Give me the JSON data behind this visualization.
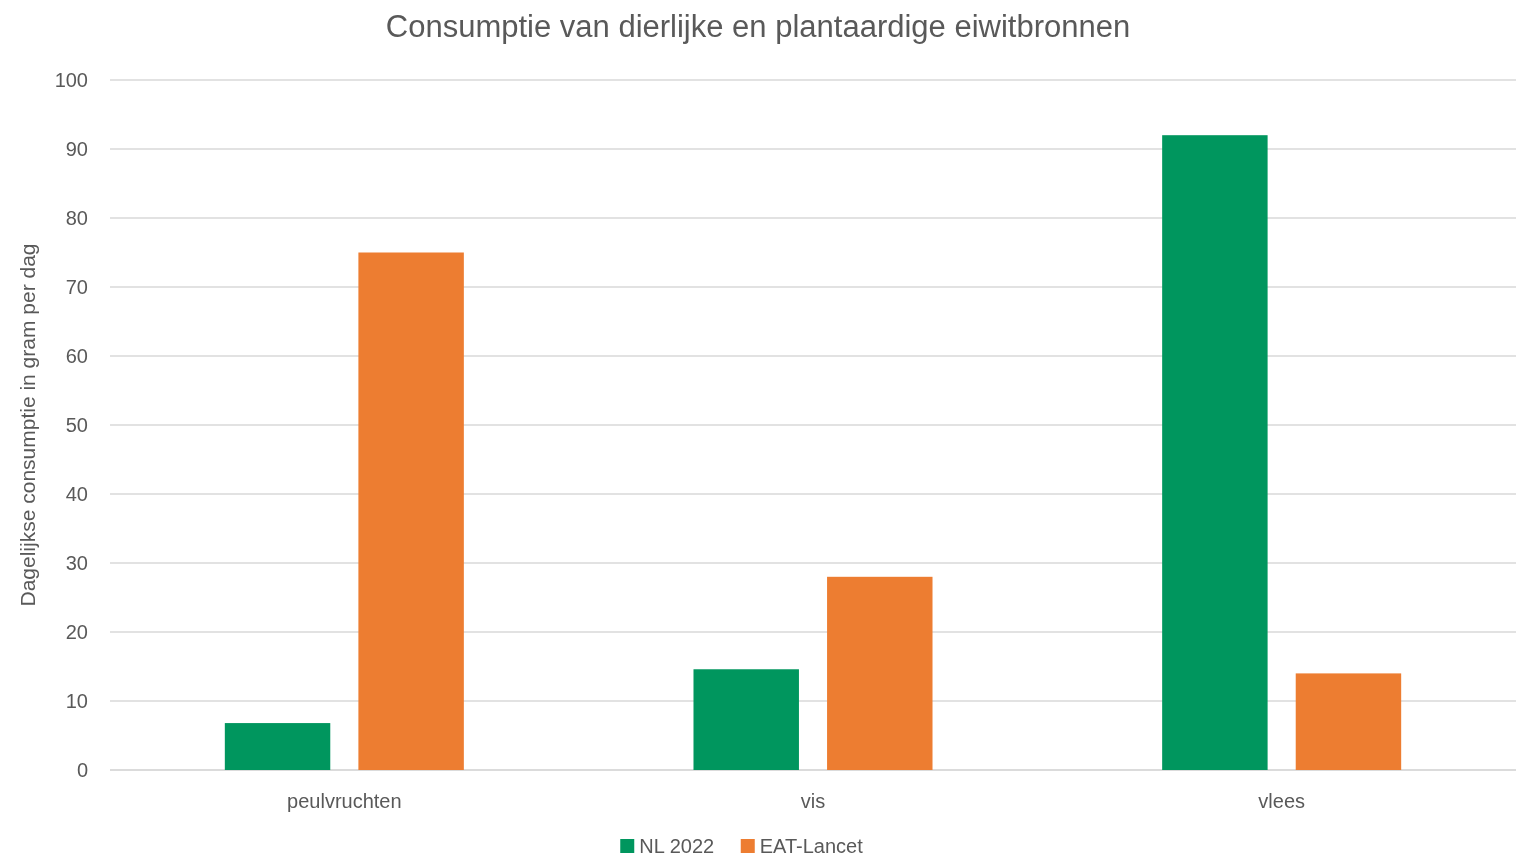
{
  "chart_data": {
    "type": "bar",
    "title": "Consumptie van dierlijke en plantaardige eiwitbronnen",
    "ylabel": "Dagelijkse consumptie in gram per dag",
    "categories": [
      "peulvruchten",
      "vis",
      "vlees"
    ],
    "series": [
      {
        "name": "NL 2022",
        "color": "#00965e",
        "values": [
          6.8,
          14.6,
          92
        ]
      },
      {
        "name": "EAT-Lancet",
        "color": "#ed7d31",
        "values": [
          75,
          28,
          14
        ]
      }
    ],
    "ylim": [
      0,
      100
    ],
    "yticks": [
      0,
      10,
      20,
      30,
      40,
      50,
      60,
      70,
      80,
      90,
      100
    ],
    "grid": "y",
    "legend": "bottom"
  }
}
